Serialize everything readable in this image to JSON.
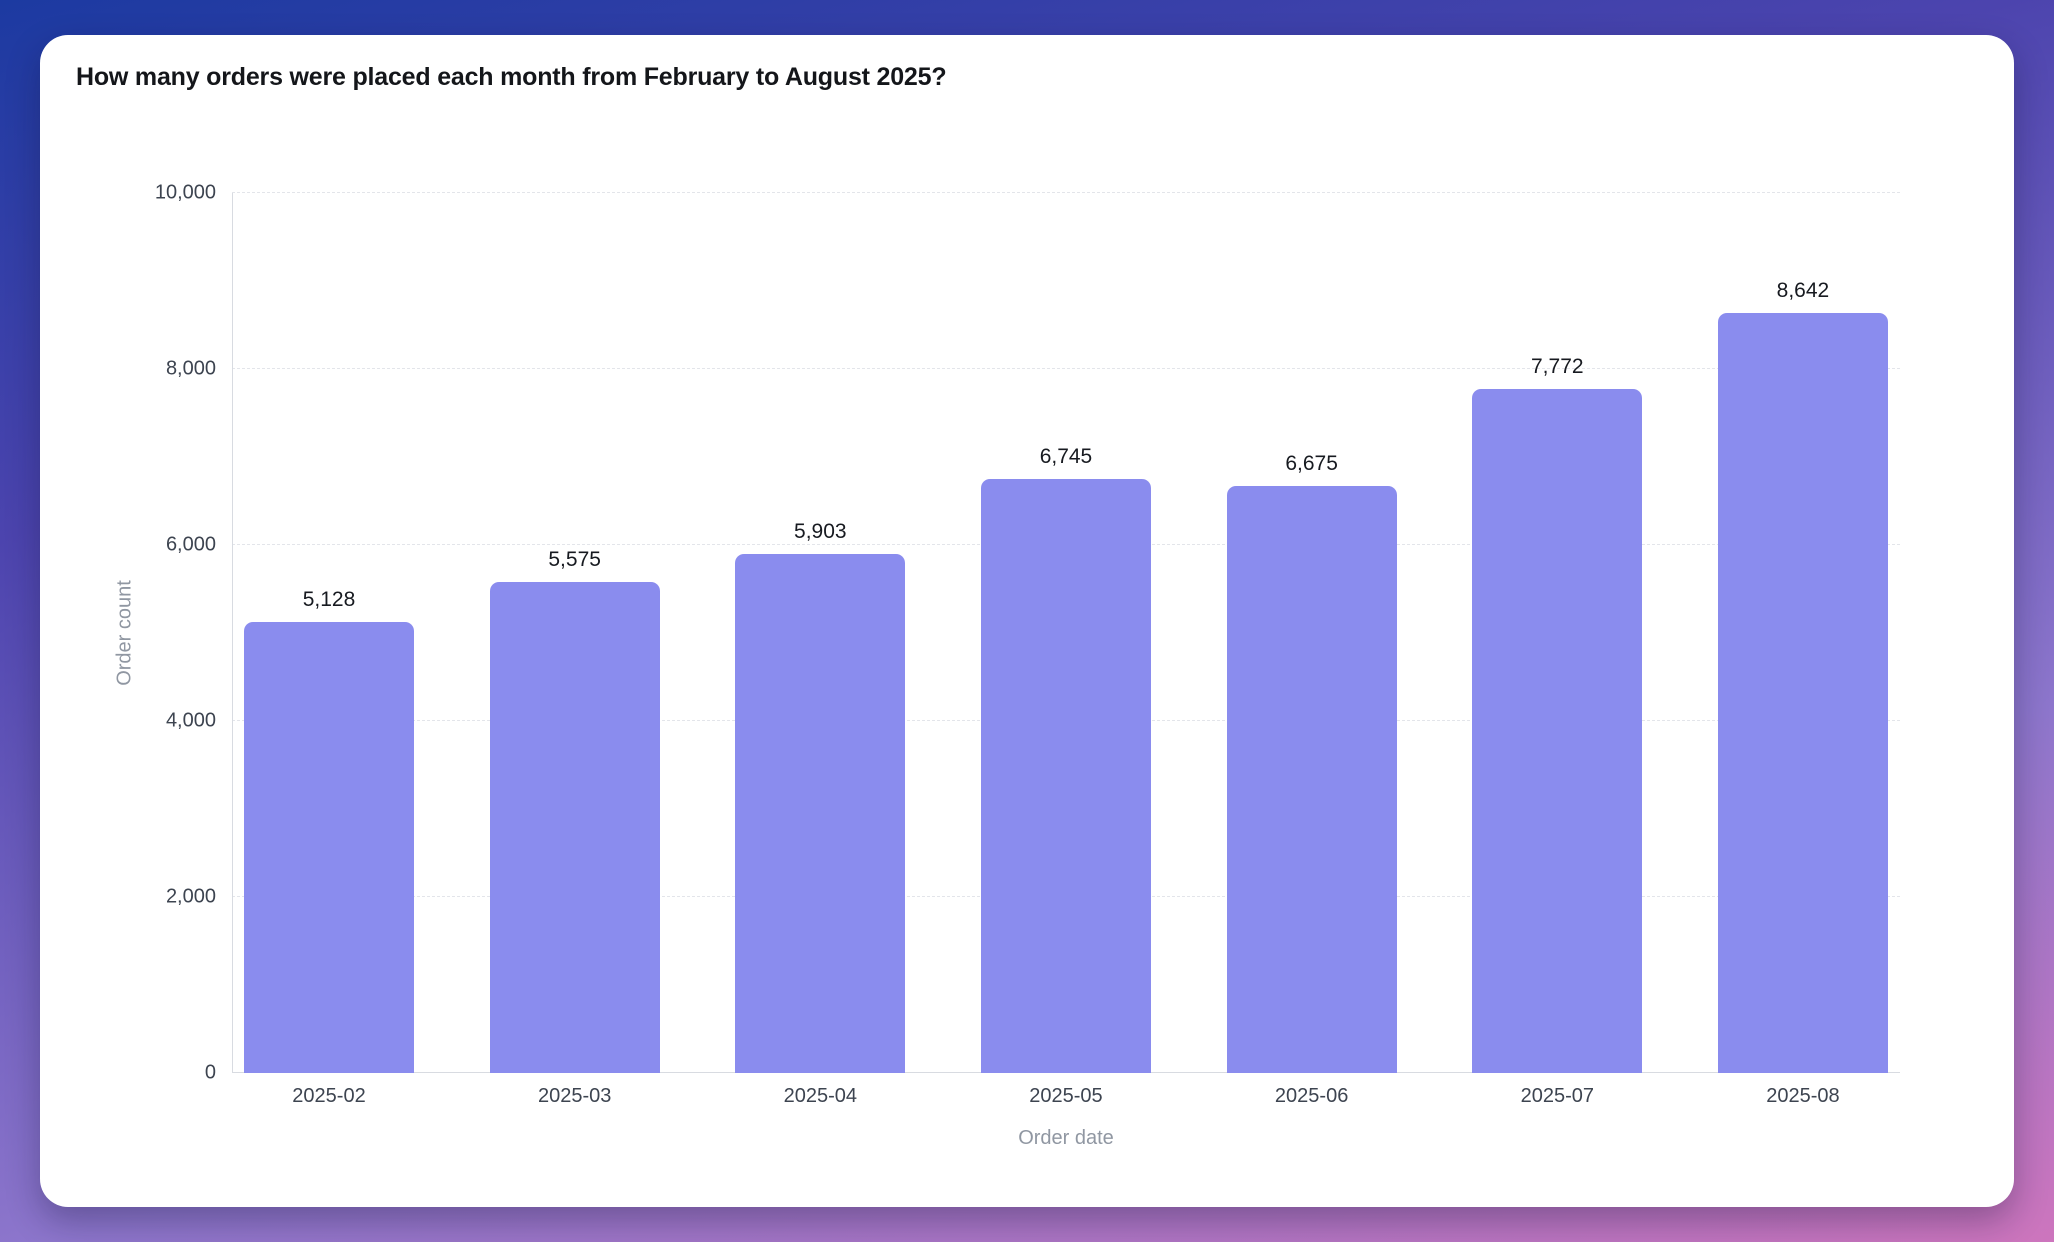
{
  "card": {
    "title": "How many orders were placed each month from February to August 2025?"
  },
  "chart_data": {
    "type": "bar",
    "title": "How many orders were placed each month from February to August 2025?",
    "categories": [
      "2025-02",
      "2025-03",
      "2025-04",
      "2025-05",
      "2025-06",
      "2025-07",
      "2025-08"
    ],
    "values": [
      5128,
      5575,
      5903,
      6745,
      6675,
      7772,
      8642
    ],
    "value_labels": [
      "5,128",
      "5,575",
      "5,903",
      "6,745",
      "6,675",
      "7,772",
      "8,642"
    ],
    "xlabel": "Order date",
    "ylabel": "Order count",
    "ylim": [
      0,
      10000
    ],
    "yticks": [
      0,
      2000,
      4000,
      6000,
      8000,
      10000
    ],
    "ytick_labels": [
      "0",
      "2,000",
      "4,000",
      "6,000",
      "8,000",
      "10,000"
    ],
    "grid": "horizontal-dashed",
    "legend": "none",
    "bar_color": "#8a8cee"
  },
  "colors": {
    "background_gradient": [
      "#1c3aa1",
      "#4c44ae",
      "#8d76cc",
      "#cd75bd"
    ],
    "card_background": "#ffffff",
    "bar": "#8a8cee",
    "axis_line": "#d8dbe1",
    "gridline": "#e3e5ea",
    "tick_label": "#3d4450",
    "axis_title": "#9097a2",
    "value_label": "#171a20",
    "title": "#14161a"
  }
}
